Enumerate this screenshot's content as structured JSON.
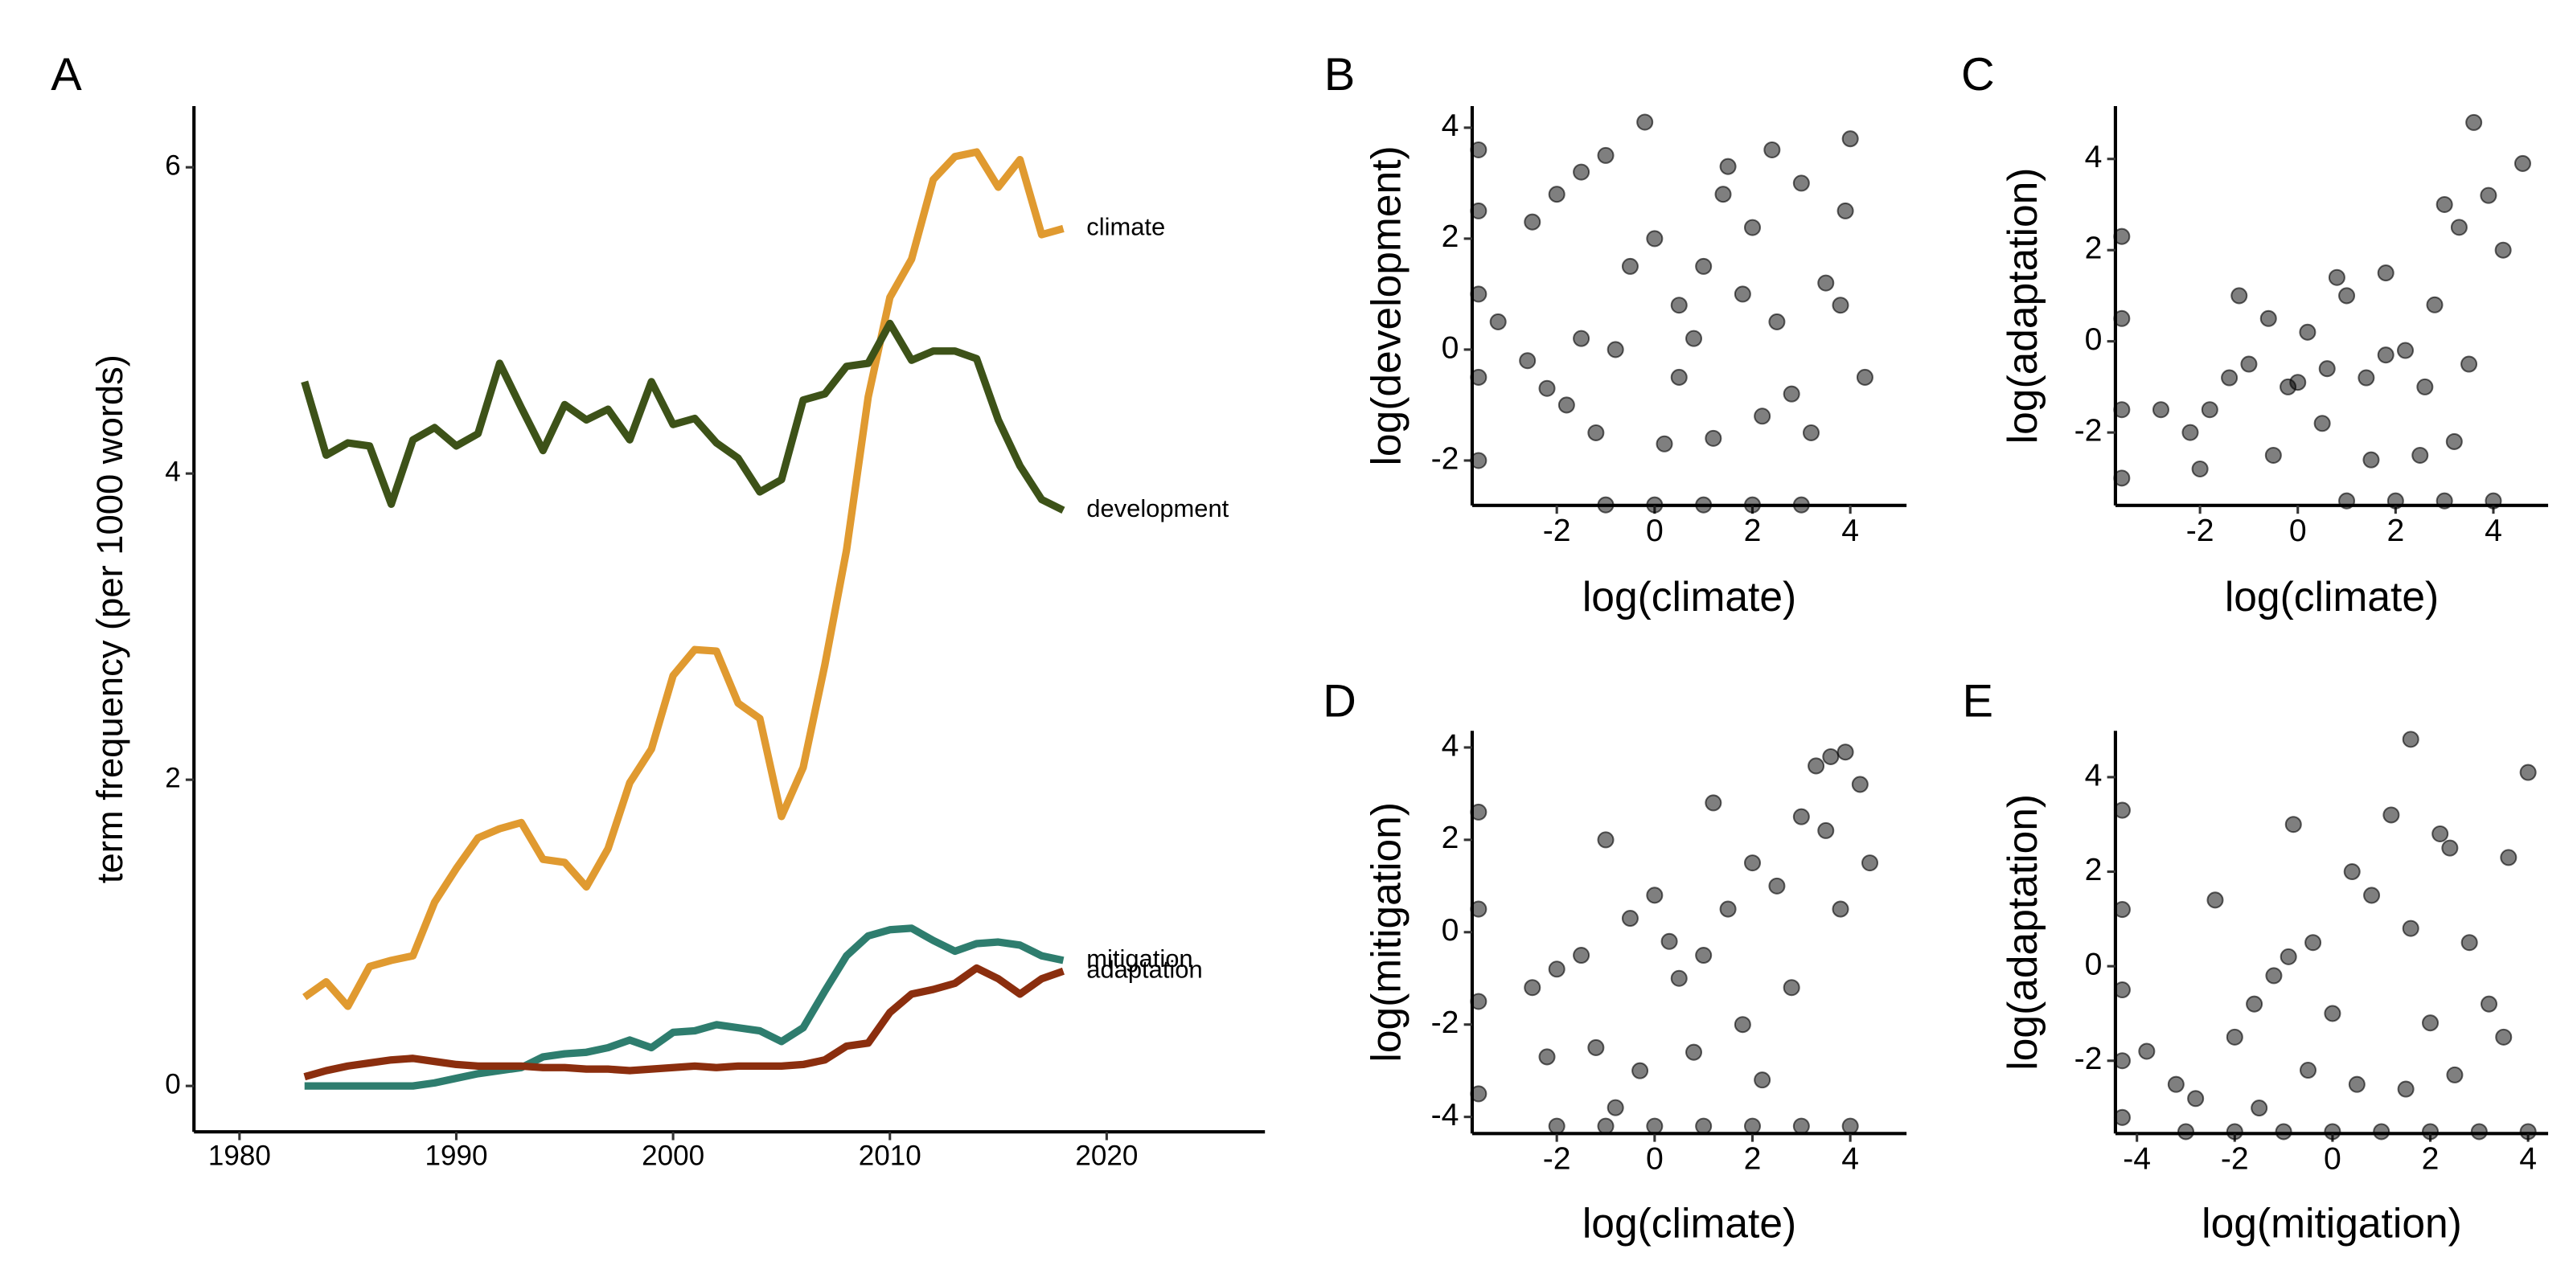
{
  "chart_data": [
    {
      "panel": "A",
      "type": "line",
      "ylabel": "term frequency (per 1000 words)",
      "x": [
        1983,
        1984,
        1985,
        1986,
        1987,
        1988,
        1989,
        1990,
        1991,
        1992,
        1993,
        1994,
        1995,
        1996,
        1997,
        1998,
        1999,
        2000,
        2001,
        2002,
        2003,
        2004,
        2005,
        2006,
        2007,
        2008,
        2009,
        2010,
        2011,
        2012,
        2013,
        2014,
        2015,
        2016,
        2017,
        2018
      ],
      "series": [
        {
          "name": "climate",
          "color": "#e09a30",
          "values": [
            0.58,
            0.68,
            0.52,
            0.78,
            0.82,
            0.85,
            1.2,
            1.42,
            1.62,
            1.68,
            1.72,
            1.48,
            1.46,
            1.3,
            1.55,
            1.98,
            2.2,
            2.68,
            2.85,
            2.84,
            2.5,
            2.4,
            1.76,
            2.08,
            2.75,
            3.5,
            4.5,
            5.15,
            5.4,
            5.92,
            6.07,
            6.1,
            5.87,
            6.05,
            5.56,
            5.6
          ]
        },
        {
          "name": "development",
          "color": "#3d5218",
          "values": [
            4.6,
            4.12,
            4.2,
            4.18,
            3.8,
            4.22,
            4.3,
            4.18,
            4.26,
            4.72,
            4.43,
            4.15,
            4.45,
            4.35,
            4.42,
            4.22,
            4.6,
            4.32,
            4.36,
            4.2,
            4.1,
            3.88,
            3.96,
            4.48,
            4.52,
            4.7,
            4.72,
            4.98,
            4.74,
            4.8,
            4.8,
            4.75,
            4.35,
            4.05,
            3.83,
            3.76
          ]
        },
        {
          "name": "mitigation",
          "color": "#2e7d6e",
          "values": [
            0,
            0,
            0,
            0,
            0,
            0,
            0.02,
            0.05,
            0.08,
            0.1,
            0.12,
            0.19,
            0.21,
            0.22,
            0.25,
            0.3,
            0.25,
            0.35,
            0.36,
            0.4,
            0.38,
            0.36,
            0.29,
            0.38,
            0.62,
            0.85,
            0.98,
            1.02,
            1.03,
            0.95,
            0.88,
            0.93,
            0.94,
            0.92,
            0.85,
            0.82
          ]
        },
        {
          "name": "adaptation",
          "color": "#8b2e0e",
          "values": [
            0.06,
            0.1,
            0.13,
            0.15,
            0.17,
            0.18,
            0.16,
            0.14,
            0.13,
            0.13,
            0.13,
            0.12,
            0.12,
            0.11,
            0.11,
            0.1,
            0.11,
            0.12,
            0.13,
            0.12,
            0.13,
            0.13,
            0.13,
            0.14,
            0.17,
            0.26,
            0.28,
            0.48,
            0.6,
            0.63,
            0.67,
            0.77,
            0.7,
            0.6,
            0.7,
            0.75
          ]
        }
      ],
      "xlim": [
        1977.9,
        2027.3
      ],
      "ylim": [
        -0.3,
        6.4
      ],
      "xticks": [
        1980,
        1990,
        2000,
        2010,
        2020
      ],
      "yticks": [
        0,
        2,
        4,
        6
      ]
    },
    {
      "panel": "B",
      "type": "scatter",
      "xlabel": "log(climate)",
      "ylabel": "log(development)",
      "color": "#000000",
      "x": [
        -3.6,
        -3.6,
        -3.6,
        -3.6,
        -3.6,
        -3.2,
        -2.5,
        -2,
        -1.5,
        -1,
        -0.5,
        0,
        0.5,
        1,
        1.5,
        2,
        2.5,
        3,
        3.5,
        4,
        -1.8,
        -1.2,
        0.2,
        1.2,
        2.2,
        3.2,
        4.3,
        -0.8,
        0.8,
        2.8,
        3.9,
        -2.2,
        1.8,
        -1,
        0,
        1,
        2,
        3,
        -1.5,
        0.5,
        3.8,
        -0.2,
        2.4,
        1.4,
        -2.6
      ],
      "y": [
        3.6,
        2.5,
        1,
        -0.5,
        -2,
        0.5,
        2.3,
        2.8,
        3.2,
        3.5,
        1.5,
        2,
        0.8,
        1.5,
        3.3,
        2.2,
        0.5,
        3,
        1.2,
        3.8,
        -1,
        -1.5,
        -1.7,
        -1.6,
        -1.2,
        -1.5,
        -0.5,
        0,
        0.2,
        -0.8,
        2.5,
        -0.7,
        1,
        -2.8,
        -2.8,
        -2.8,
        -2.8,
        -2.8,
        0.2,
        -0.5,
        0.8,
        4.1,
        3.6,
        2.8,
        -0.2
      ],
      "xlim": [
        -3.73,
        5.15
      ],
      "ylim": [
        -2.81,
        4.39
      ],
      "xticks": [
        -2,
        0,
        2,
        4
      ],
      "yticks": [
        -2,
        0,
        2,
        4
      ]
    },
    {
      "panel": "C",
      "type": "scatter",
      "xlabel": "log(climate)",
      "ylabel": "log(adaptation)",
      "color": "#000000",
      "x": [
        -3.6,
        -3.6,
        -3.6,
        -3.6,
        -2.8,
        -2.2,
        -1.8,
        -1.4,
        -1,
        -0.6,
        -0.2,
        0.2,
        0.6,
        1,
        1.4,
        1.8,
        2.2,
        2.6,
        3,
        3.3,
        3.6,
        3.9,
        4.2,
        4.6,
        3.2,
        3.5,
        -0.5,
        0.5,
        1.5,
        2.5,
        1,
        2,
        3,
        4,
        -1.2,
        0.8,
        2.8,
        1.8,
        -2,
        0
      ],
      "y": [
        2.3,
        0.5,
        -1.5,
        -3,
        -1.5,
        -2,
        -1.5,
        -0.8,
        -0.5,
        0.5,
        -1,
        0.2,
        -0.6,
        1,
        -0.8,
        1.5,
        -0.2,
        -1,
        3,
        2.5,
        4.8,
        3.2,
        2,
        3.9,
        -2.2,
        -0.5,
        -2.5,
        -1.8,
        -2.6,
        -2.5,
        -3.5,
        -3.5,
        -3.5,
        -3.5,
        1,
        1.4,
        0.8,
        -0.3,
        -2.8,
        -0.9
      ],
      "xlim": [
        -3.73,
        5.12
      ],
      "ylim": [
        -3.6,
        5.16
      ],
      "xticks": [
        -2,
        0,
        2,
        4
      ],
      "yticks": [
        -2,
        0,
        2,
        4
      ]
    },
    {
      "panel": "D",
      "type": "scatter",
      "xlabel": "log(climate)",
      "ylabel": "log(mitigation)",
      "color": "#000000",
      "x": [
        -3.6,
        -3.6,
        -3.6,
        -3.6,
        -2.5,
        -2,
        -1.5,
        -1,
        -0.5,
        0,
        0.5,
        1,
        1.5,
        2,
        2.5,
        3,
        3.3,
        3.6,
        3.9,
        4.2,
        4.4,
        -1.2,
        -0.3,
        0.8,
        1.8,
        2.8,
        3.8,
        -2,
        -1,
        0,
        1,
        2,
        3,
        4,
        -2.2,
        -0.8,
        2.2,
        1.2,
        3.5,
        0.3
      ],
      "y": [
        2.6,
        0.5,
        -1.5,
        -3.5,
        -1.2,
        -0.8,
        -0.5,
        2,
        0.3,
        0.8,
        -1,
        -0.5,
        0.5,
        1.5,
        1,
        2.5,
        3.6,
        3.8,
        3.9,
        3.2,
        1.5,
        -2.5,
        -3,
        -2.6,
        -2,
        -1.2,
        0.5,
        -4.2,
        -4.2,
        -4.2,
        -4.2,
        -4.2,
        -4.2,
        -4.2,
        -2.7,
        -3.8,
        -3.2,
        2.8,
        2.2,
        -0.2
      ],
      "xlim": [
        -3.73,
        5.15
      ],
      "ylim": [
        -4.36,
        4.36
      ],
      "xticks": [
        -2,
        0,
        2,
        4
      ],
      "yticks": [
        -4,
        -2,
        0,
        2,
        4
      ]
    },
    {
      "panel": "E",
      "type": "scatter",
      "xlabel": "log(mitigation)",
      "ylabel": "log(adaptation)",
      "color": "#000000",
      "x": [
        -4.3,
        -4.3,
        -4.3,
        -4.3,
        -4.3,
        -3.8,
        -3.2,
        -2.8,
        -2.4,
        -2,
        -1.6,
        -1.2,
        -0.8,
        -0.4,
        0,
        0.4,
        0.8,
        1.2,
        1.6,
        2,
        2.4,
        2.8,
        3.2,
        3.6,
        4,
        -1.5,
        -0.5,
        0.5,
        1.5,
        2.5,
        3.5,
        -3,
        -2,
        -1,
        0,
        1,
        2,
        3,
        4,
        1.6,
        -0.9,
        2.2
      ],
      "y": [
        3.3,
        1.2,
        -0.5,
        -2,
        -3.2,
        -1.8,
        -2.5,
        -2.8,
        1.4,
        -1.5,
        -0.8,
        -0.2,
        3,
        0.5,
        -1,
        2,
        1.5,
        3.2,
        4.8,
        -1.2,
        2.5,
        0.5,
        -0.8,
        2.3,
        4.1,
        -3,
        -2.2,
        -2.5,
        -2.6,
        -2.3,
        -1.5,
        -3.5,
        -3.5,
        -3.5,
        -3.5,
        -3.5,
        -3.5,
        -3.5,
        -3.5,
        0.8,
        0.2,
        2.8
      ],
      "xlim": [
        -4.44,
        4.41
      ],
      "ylim": [
        -3.54,
        4.98
      ],
      "xticks": [
        -4,
        -2,
        0,
        2,
        4
      ],
      "yticks": [
        -2,
        0,
        2,
        4
      ]
    }
  ]
}
